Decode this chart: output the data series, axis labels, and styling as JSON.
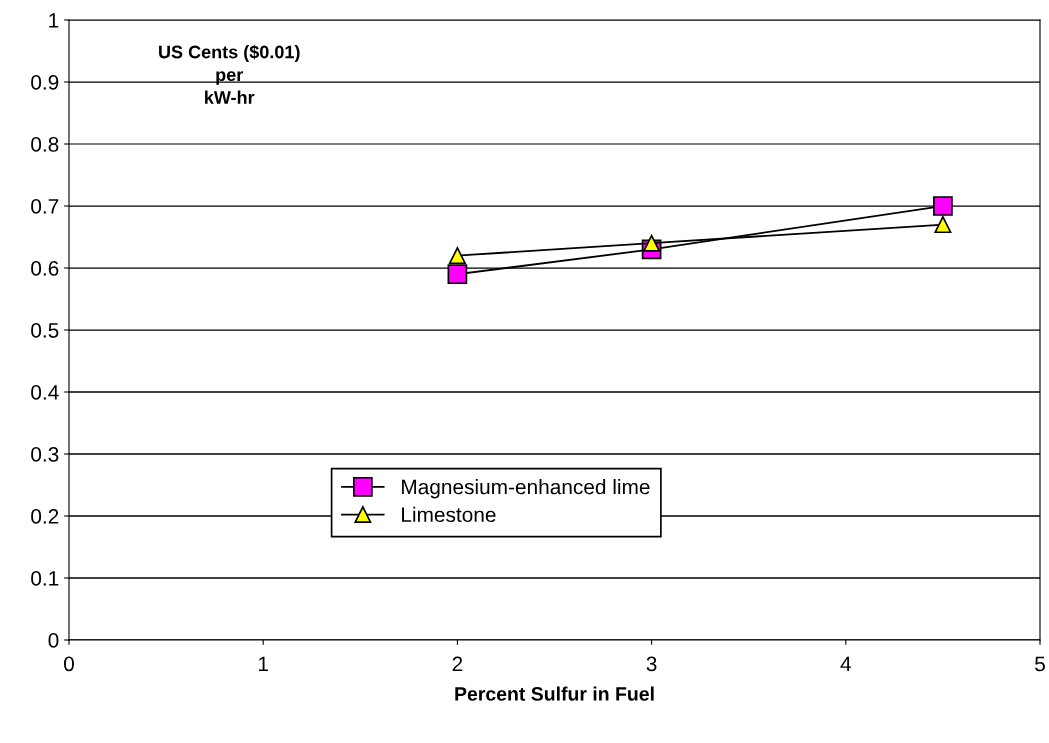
{
  "chart_data": {
    "type": "line",
    "xlabel": "Percent Sulfur in Fuel",
    "annotations": [
      "US Cents ($0.01)\nper\nkW-hr"
    ],
    "series": [
      {
        "name": "Magnesium-enhanced lime",
        "color": "#ff00ff",
        "marker": "square",
        "x": [
          2,
          3,
          4.5
        ],
        "values": [
          0.59,
          0.63,
          0.7
        ]
      },
      {
        "name": "Limestone",
        "color": "#ffff00",
        "marker": "triangle",
        "x": [
          2,
          3,
          4.5
        ],
        "values": [
          0.62,
          0.64,
          0.67
        ]
      }
    ],
    "xlim": [
      0,
      5
    ],
    "xticks": [
      0,
      1,
      2,
      3,
      4,
      5
    ],
    "ylim": [
      0,
      1
    ],
    "yticks": [
      0,
      0.1,
      0.2,
      0.3,
      0.4,
      0.5,
      0.6,
      0.7,
      0.8,
      0.9,
      1
    ],
    "grid": "y",
    "legend": "bottom",
    "line_style": "solid"
  }
}
